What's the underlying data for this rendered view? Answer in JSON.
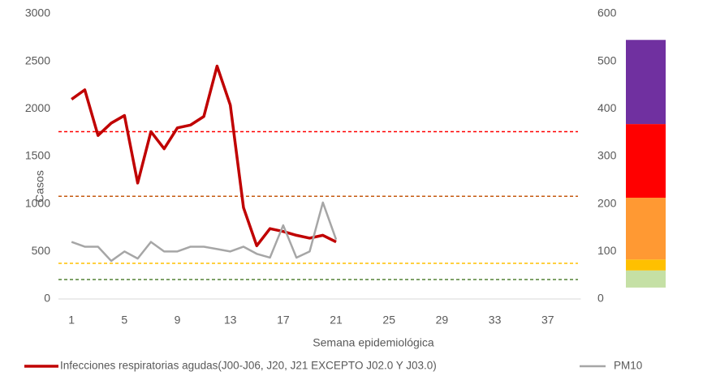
{
  "chart_data": {
    "type": "line",
    "categories": [
      1,
      null,
      null,
      null,
      5,
      null,
      null,
      null,
      9,
      null,
      null,
      null,
      13,
      null,
      null,
      null,
      17,
      null,
      null,
      null,
      21,
      null,
      null,
      null,
      25,
      null,
      null,
      null,
      29,
      null,
      null,
      null,
      33,
      null,
      null,
      null,
      37,
      null,
      null
    ],
    "x_label": "Semana epidemiológica",
    "y_label": "Casos",
    "series": [
      {
        "name": "Infecciones respiratorias agudas(J00-J06, J20, J21 EXCEPTO J02.0 Y J03.0)",
        "color": "#c00000",
        "axis": "y",
        "values": [
          2100,
          2200,
          1720,
          1850,
          1930,
          1220,
          1760,
          1580,
          1800,
          1830,
          1920,
          2450,
          2040,
          960,
          560,
          740,
          710,
          670,
          640,
          670,
          600,
          null,
          null,
          null,
          null,
          null,
          null,
          null,
          null,
          null,
          null,
          null,
          null,
          null,
          null,
          null,
          null,
          null,
          null
        ]
      },
      {
        "name": "PM10",
        "color": "#a6a6a6",
        "axis": "y2",
        "values": [
          120,
          110,
          110,
          80,
          100,
          85,
          120,
          100,
          100,
          110,
          110,
          105,
          100,
          110,
          95,
          87,
          155,
          87,
          100,
          203,
          125,
          null,
          null,
          null,
          null,
          null,
          null,
          null,
          null,
          null,
          null,
          null,
          null,
          null,
          null,
          null,
          null,
          null,
          null
        ]
      }
    ],
    "ylim": [
      0,
      3000
    ],
    "yticks": [
      0,
      500,
      1000,
      1500,
      2000,
      2500,
      3000
    ],
    "y2lim": [
      0,
      600
    ],
    "y2ticks": [
      0,
      100,
      200,
      300,
      400,
      500,
      600
    ],
    "reference_lines": [
      {
        "value": 1760,
        "color": "#ff0000"
      },
      {
        "value": 1080,
        "color": "#c55a11"
      },
      {
        "value": 375,
        "color": "#ffc000"
      },
      {
        "value": 205,
        "color": "#548235"
      }
    ],
    "y2_bands": [
      {
        "low": 24,
        "high": 60,
        "color": "#c5e0a5"
      },
      {
        "low": 60,
        "high": 83,
        "color": "#ffc000"
      },
      {
        "low": 83,
        "high": 213,
        "color": "#ff9933"
      },
      {
        "low": 213,
        "high": 368,
        "color": "#ff0000"
      },
      {
        "low": 368,
        "high": 545,
        "color": "#7030a0"
      }
    ]
  }
}
